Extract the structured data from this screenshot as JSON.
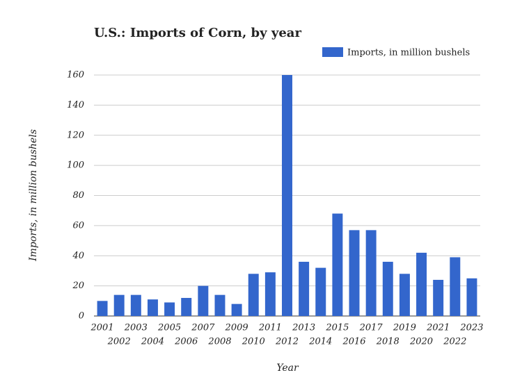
{
  "chart_data": {
    "type": "bar",
    "title": "U.S.: Imports of Corn, by year",
    "x_label": "Year",
    "y_label": "Imports, in million bushels",
    "categories": [
      "2001",
      "2002",
      "2003",
      "2004",
      "2005",
      "2006",
      "2007",
      "2008",
      "2009",
      "2010",
      "2011",
      "2012",
      "2013",
      "2014",
      "2015",
      "2016",
      "2017",
      "2018",
      "2019",
      "2020",
      "2021",
      "2022",
      "2023"
    ],
    "series": [
      {
        "name": "Imports, in million bushels",
        "color": "#3366cc",
        "values": [
          10,
          14,
          14,
          11,
          9,
          12,
          20,
          14,
          8,
          28,
          29,
          160,
          36,
          32,
          68,
          57,
          57,
          36,
          28,
          42,
          24,
          39,
          25
        ]
      }
    ],
    "ylim": [
      0,
      160
    ],
    "yticks": [
      0,
      20,
      40,
      60,
      80,
      100,
      120,
      140,
      160
    ],
    "grid": true,
    "legend": "top-right"
  }
}
